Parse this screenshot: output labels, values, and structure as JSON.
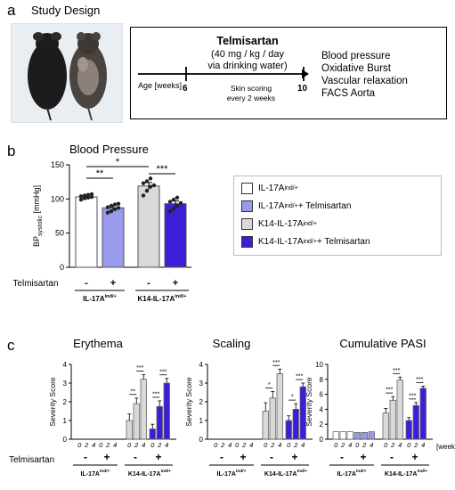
{
  "panel_a": {
    "letter": "a",
    "title": "Study Design",
    "drug": "Telmisartan",
    "dose_line1": "(40 mg / kg / day",
    "dose_line2": "via drinking water)",
    "age_label": "Age [weeks]",
    "start_week": "6",
    "end_week": "10",
    "scoring_line1": "Skin scoring",
    "scoring_line2": "every 2 weeks",
    "outcomes": [
      "Blood pressure",
      "Oxidative Burst",
      "Vascular relaxation",
      "FACS Aorta"
    ]
  },
  "panel_b": {
    "letter": "b",
    "title": "Blood Pressure",
    "ylabel": "BP",
    "ylabel_sub": "systolic",
    "ylabel_unit": " [mmHg]",
    "treatment_label": "Telmisartan",
    "minus": "-",
    "plus": "+",
    "sig_brackets": [
      "**",
      "*",
      "***"
    ],
    "group_labels": [
      "IL-17A",
      "K14-IL-17A"
    ],
    "group_sup": "ind/+"
  },
  "legend": [
    {
      "base": "IL-17A",
      "sup": "ind/+",
      "suffix": "",
      "color": "#ffffff"
    },
    {
      "base": "IL-17A",
      "sup": "ind/+",
      "suffix": " + Telmisartan",
      "color": "#9999ee"
    },
    {
      "base": "K14-IL-17A",
      "sup": "ind/+",
      "suffix": "",
      "color": "#d9d9d9"
    },
    {
      "base": "K14-IL-17A",
      "sup": "ind/+",
      "suffix": " + Telmisartan",
      "color": "#3b1fd6"
    }
  ],
  "panel_c": {
    "letter": "c",
    "titles": [
      "Erythema",
      "Scaling",
      "Cumulative  PASI"
    ],
    "ylabel": "Severity Score",
    "weeks_label": "[weeks]",
    "treatment_label": "Telmisartan",
    "minus": "-",
    "plus": "+",
    "week_ticks": [
      "0",
      "2",
      "4"
    ],
    "group_labels": [
      "IL-17A",
      "K14-IL-17A"
    ],
    "group_sup": "ind/+"
  },
  "chart_data": [
    {
      "type": "bar",
      "title": "Blood Pressure",
      "ylabel": "BP systolic [mmHg]",
      "ylim": [
        0,
        150
      ],
      "yticks": [
        0,
        50,
        100,
        150
      ],
      "categories": [
        "IL-17A ind/+",
        "IL-17A ind/+ + Telmisartan",
        "K14-IL-17A ind/+",
        "K14-IL-17A ind/+ + Telmisartan"
      ],
      "values": [
        103,
        87,
        119,
        93
      ],
      "errors": [
        2,
        3,
        5,
        4
      ],
      "points": [
        [
          99,
          101,
          102,
          103,
          104,
          105,
          106,
          107
        ],
        [
          80,
          82,
          85,
          87,
          88,
          90,
          92,
          93
        ],
        [
          105,
          112,
          118,
          120,
          123,
          126,
          130
        ],
        [
          82,
          86,
          90,
          94,
          96,
          99,
          102
        ]
      ],
      "colors": [
        "#ffffff",
        "#9999ee",
        "#d9d9d9",
        "#3b1fd6"
      ],
      "significance": [
        {
          "pair": [
            0,
            1
          ],
          "label": "**"
        },
        {
          "pair": [
            0,
            2
          ],
          "label": "*"
        },
        {
          "pair": [
            2,
            3
          ],
          "label": "***"
        }
      ]
    },
    {
      "type": "bar",
      "title": "Erythema",
      "ylabel": "Severity Score",
      "ylim": [
        0,
        4
      ],
      "yticks": [
        0,
        1,
        2,
        3,
        4
      ],
      "x": [
        "0",
        "2",
        "4"
      ],
      "series": [
        {
          "values": [
            0,
            0,
            0
          ],
          "color": "#ffffff"
        },
        {
          "values": [
            0,
            0,
            0
          ],
          "color": "#9999ee"
        },
        {
          "values": [
            1.0,
            1.9,
            3.2
          ],
          "errors": [
            0.35,
            0.3,
            0.25
          ],
          "color": "#d9d9d9"
        },
        {
          "values": [
            0.55,
            1.75,
            3.0
          ],
          "errors": [
            0.25,
            0.3,
            0.25
          ],
          "color": "#3b1fd6"
        }
      ],
      "significance": [
        "**",
        "***",
        "***",
        "***"
      ]
    },
    {
      "type": "bar",
      "title": "Scaling",
      "ylabel": "Severity Score",
      "ylim": [
        0,
        4
      ],
      "yticks": [
        0,
        1,
        2,
        3,
        4
      ],
      "x": [
        "0",
        "2",
        "4"
      ],
      "series": [
        {
          "values": [
            0,
            0,
            0
          ],
          "color": "#ffffff"
        },
        {
          "values": [
            0,
            0,
            0
          ],
          "color": "#9999ee"
        },
        {
          "values": [
            1.5,
            2.2,
            3.5
          ],
          "errors": [
            0.45,
            0.35,
            0.25
          ],
          "color": "#d9d9d9"
        },
        {
          "values": [
            1.0,
            1.6,
            2.8
          ],
          "errors": [
            0.25,
            0.3,
            0.2
          ],
          "color": "#3b1fd6"
        }
      ],
      "significance": [
        "*",
        "***",
        "*",
        "***"
      ]
    },
    {
      "type": "bar",
      "title": "Cumulative  PASI",
      "ylabel": "Severity Score",
      "ylim": [
        0,
        10
      ],
      "yticks": [
        0,
        2,
        4,
        6,
        8,
        10
      ],
      "x": [
        "0",
        "2",
        "4"
      ],
      "series": [
        {
          "values": [
            1,
            1,
            1
          ],
          "color": "#ffffff"
        },
        {
          "values": [
            0.9,
            0.9,
            1
          ],
          "color": "#9999ee"
        },
        {
          "values": [
            3.5,
            5.2,
            7.9
          ],
          "errors": [
            0.6,
            0.5,
            0.4
          ],
          "color": "#d9d9d9"
        },
        {
          "values": [
            2.5,
            4.5,
            6.8
          ],
          "errors": [
            0.4,
            0.4,
            0.3
          ],
          "color": "#3b1fd6"
        }
      ],
      "significance": [
        "***",
        "***",
        "***",
        "***"
      ]
    }
  ]
}
